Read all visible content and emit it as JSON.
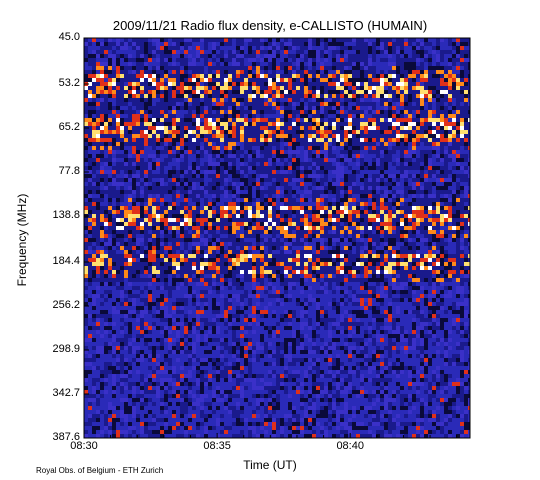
{
  "chart_data": {
    "type": "heatmap",
    "title": "2009/11/21  Radio flux density, e-CALLISTO (HUMAIN)",
    "xlabel": "Time (UT)",
    "ylabel": "Frequency (MHz)",
    "x_ticks": [
      "08:30",
      "08:35",
      "08:40"
    ],
    "y_ticks": [
      "45.0",
      "53.2",
      "65.2",
      "77.8",
      "138.8",
      "184.4",
      "256.2",
      "298.9",
      "342.7",
      "387.6"
    ],
    "xlim": [
      "08:30",
      "08:44:30"
    ],
    "ylim": [
      "45.0",
      "387.6"
    ],
    "colormap": [
      "#0a0a3a",
      "#1a1a8c",
      "#2a2ab8",
      "#3a30c8",
      "#e0301a",
      "#ff8a1a",
      "#ffe070",
      "#ffffff"
    ],
    "bright_bands_mhz": [
      "53.2",
      "65.2",
      "138.8",
      "184.4"
    ],
    "credit": "Royal Obs. of Belgium - ETH Zurich"
  }
}
